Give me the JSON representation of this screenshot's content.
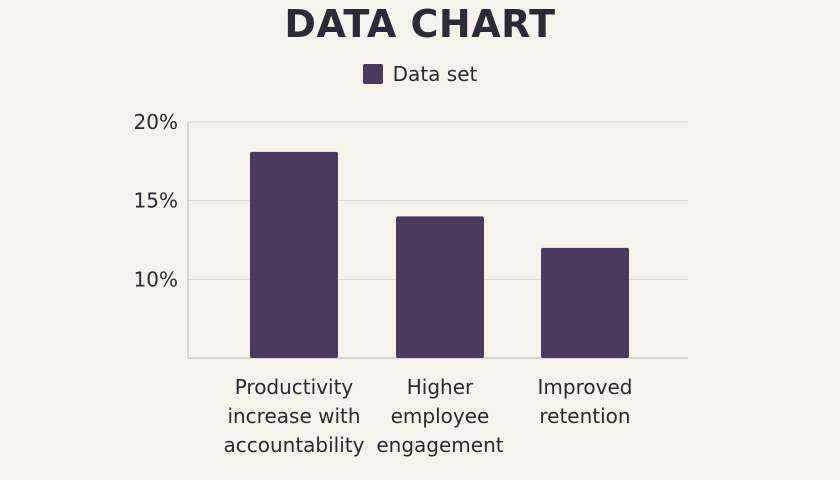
{
  "chart_data": {
    "type": "bar",
    "title": "DATA CHART",
    "categories": [
      [
        "Productivity",
        "increase with",
        "accountability"
      ],
      [
        "Higher",
        "employee",
        "engagement"
      ],
      [
        "Improved",
        "retention"
      ]
    ],
    "series": [
      {
        "name": "Data set",
        "values": [
          18.1,
          14,
          12
        ],
        "color": "#4b3a5e"
      }
    ],
    "ylim": [
      5,
      20
    ],
    "yticks": [
      "20%",
      "15%",
      "10%"
    ],
    "ytick_values": [
      20,
      15,
      10
    ],
    "grid": true,
    "legend": "top-center"
  }
}
